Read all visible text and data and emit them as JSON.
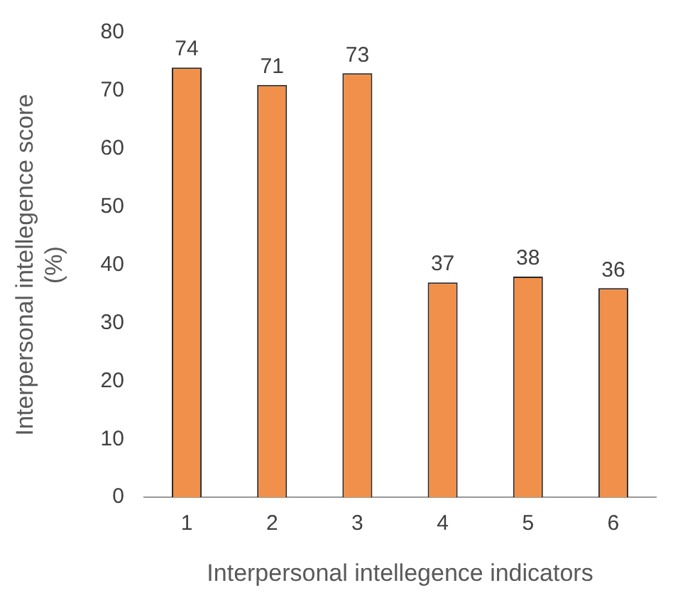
{
  "chart_data": {
    "type": "bar",
    "xlabel": "Interpersonal intellegence indicators",
    "ylabel": "Interpersonal intellegence score\n(%)",
    "categories": [
      "1",
      "2",
      "3",
      "4",
      "5",
      "6"
    ],
    "values": [
      74,
      71,
      73,
      37,
      38,
      36
    ],
    "color": "#f0904a",
    "ylim": [
      0,
      80
    ],
    "yticks": [
      0,
      10,
      20,
      30,
      40,
      50,
      60,
      70,
      80
    ],
    "grid": false,
    "legend": false,
    "data_labels": true
  }
}
